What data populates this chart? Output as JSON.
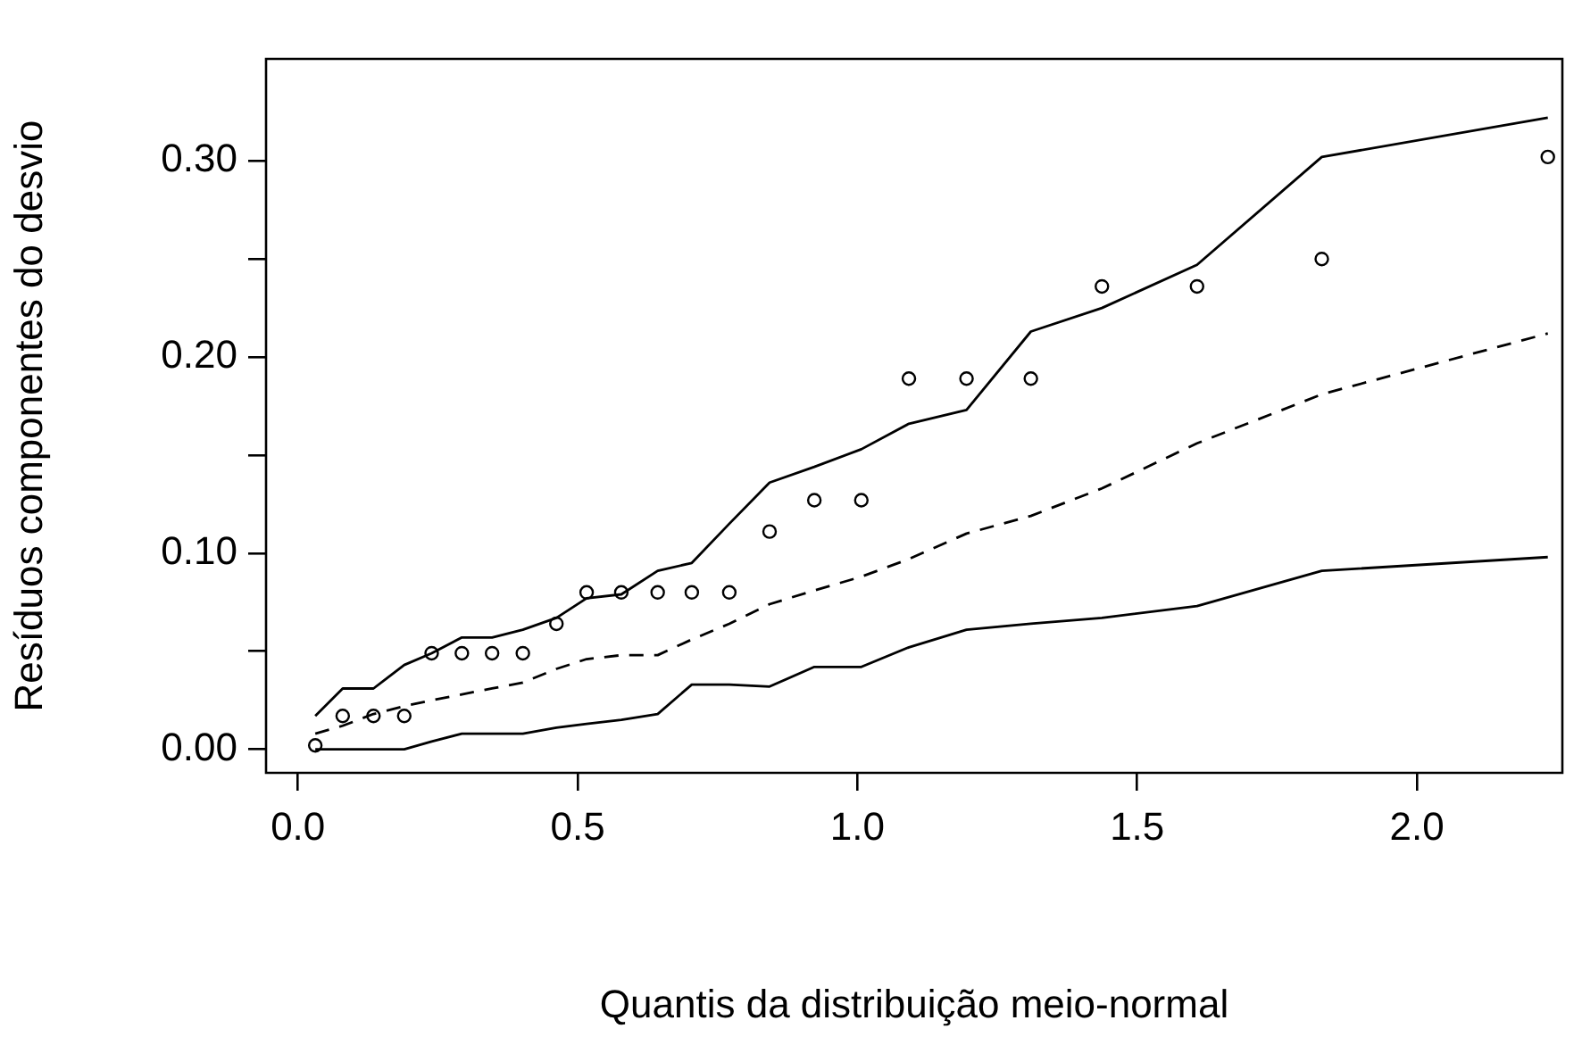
{
  "chart_data": {
    "type": "scatter",
    "xlabel": "Quantis da distribuição meio-normal",
    "ylabel": "Resíduos componentes do desvio",
    "x": [
      0.031,
      0.08,
      0.135,
      0.19,
      0.239,
      0.293,
      0.347,
      0.402,
      0.462,
      0.516,
      0.578,
      0.643,
      0.704,
      0.771,
      0.843,
      0.923,
      1.007,
      1.092,
      1.195,
      1.31,
      1.437,
      1.607,
      1.83,
      2.234
    ],
    "series": [
      {
        "type": "scatter",
        "marker": "circle",
        "color": "#000000",
        "values": [
          0.002,
          0.017,
          0.017,
          0.017,
          0.049,
          0.049,
          0.049,
          0.049,
          0.064,
          0.08,
          0.08,
          0.08,
          0.08,
          0.08,
          0.111,
          0.127,
          0.127,
          0.189,
          0.189,
          0.189,
          0.236,
          0.236,
          0.25,
          0.302
        ]
      },
      {
        "type": "line",
        "marker": "none",
        "line_style": "solid",
        "color": "#000000",
        "values": [
          0.017,
          0.031,
          0.031,
          0.043,
          0.049,
          0.057,
          0.057,
          0.061,
          0.067,
          0.077,
          0.079,
          0.091,
          0.095,
          0.115,
          0.136,
          0.144,
          0.153,
          0.166,
          0.173,
          0.213,
          0.225,
          0.247,
          0.302,
          0.322
        ]
      },
      {
        "type": "line",
        "marker": "none",
        "line_style": "dashed",
        "color": "#000000",
        "values": [
          0.008,
          0.012,
          0.018,
          0.022,
          0.025,
          0.028,
          0.031,
          0.034,
          0.041,
          0.046,
          0.048,
          0.048,
          0.056,
          0.064,
          0.074,
          0.081,
          0.088,
          0.097,
          0.11,
          0.119,
          0.133,
          0.156,
          0.181,
          0.212
        ]
      },
      {
        "type": "line",
        "marker": "none",
        "line_style": "solid",
        "color": "#000000",
        "values": [
          0.0,
          0.0,
          0.0,
          0.0,
          0.004,
          0.008,
          0.008,
          0.008,
          0.011,
          0.013,
          0.015,
          0.018,
          0.033,
          0.033,
          0.032,
          0.042,
          0.042,
          0.052,
          0.061,
          0.064,
          0.067,
          0.073,
          0.091,
          0.098
        ]
      }
    ],
    "xlim": [
      -0.057,
      2.26
    ],
    "ylim": [
      -0.012,
      0.352
    ],
    "xticks": [
      {
        "value": 0,
        "label": "0.0"
      },
      {
        "value": 0.5,
        "label": "0.5"
      },
      {
        "value": 1,
        "label": "1.0"
      },
      {
        "value": 1.5,
        "label": "1.5"
      },
      {
        "value": 2,
        "label": "2.0"
      }
    ],
    "yticks": [
      {
        "value": 0,
        "label": "0.00"
      },
      {
        "value": 0.05,
        "label": null
      },
      {
        "value": 0.1,
        "label": "0.10"
      },
      {
        "value": 0.15,
        "label": null
      },
      {
        "value": 0.2,
        "label": "0.20"
      },
      {
        "value": 0.25,
        "label": null
      },
      {
        "value": 0.3,
        "label": "0.30"
      }
    ]
  }
}
